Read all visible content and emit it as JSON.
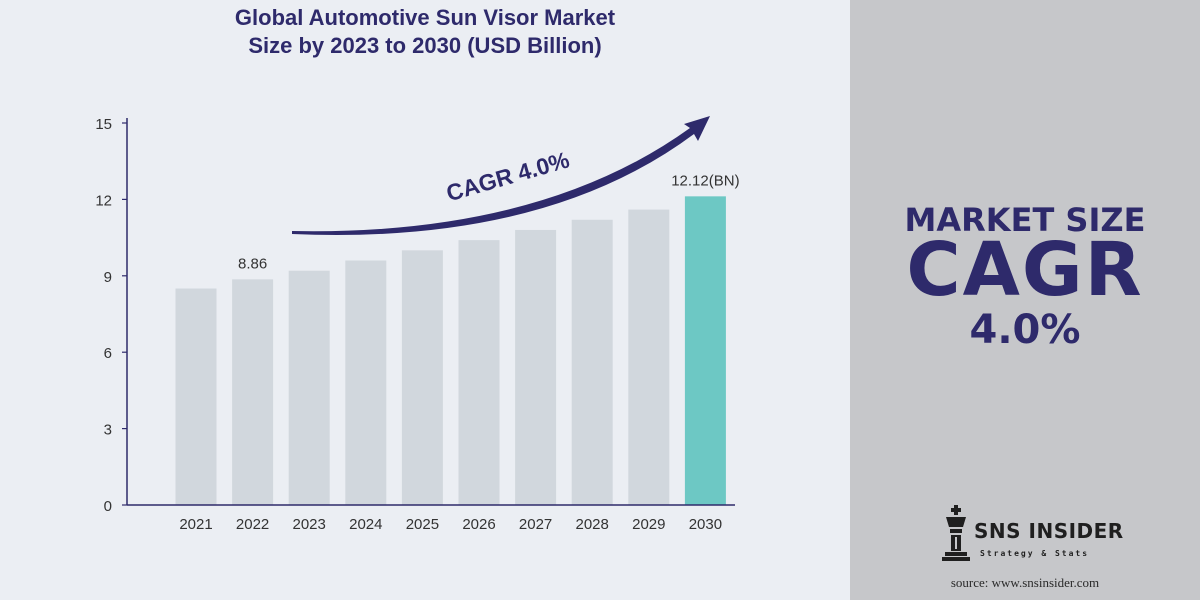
{
  "title": {
    "line1": "Global Automotive Sun Visor Market",
    "line2": "Size by 2023 to 2030 (USD Billion)"
  },
  "colors": {
    "bar": "#d1d7dd",
    "highlight_bar": "#6dc8c4",
    "accent": "#2e2a6b",
    "axis": "#2e2a6b",
    "right_panel": "#c6c7ca",
    "background": "#ebeef3"
  },
  "chart_data": {
    "type": "bar",
    "categories": [
      "2021",
      "2022",
      "2023",
      "2024",
      "2025",
      "2026",
      "2027",
      "2028",
      "2029",
      "2030"
    ],
    "values": [
      8.5,
      8.86,
      9.2,
      9.6,
      10.0,
      10.4,
      10.8,
      11.2,
      11.6,
      12.12
    ],
    "yticks": [
      0,
      3,
      6,
      9,
      12,
      15
    ],
    "ylim": [
      0,
      15
    ],
    "grid": false,
    "highlight_category": "2030",
    "data_labels": [
      {
        "category": "2022",
        "text": "8.86"
      },
      {
        "category": "2030",
        "text": "12.12(BN)"
      }
    ],
    "annotation": {
      "text": "CAGR  4.0%",
      "from_category": "2023",
      "to_category": "2030"
    }
  },
  "kpi": {
    "line1": "MARKET SIZE",
    "line2": "CAGR",
    "line3": "4.0%"
  },
  "logo": {
    "name": "SNS INSIDER",
    "tagline": "Strategy & Stats",
    "icon": "chess-king-icon"
  },
  "source": "source: www.snsinsider.com"
}
